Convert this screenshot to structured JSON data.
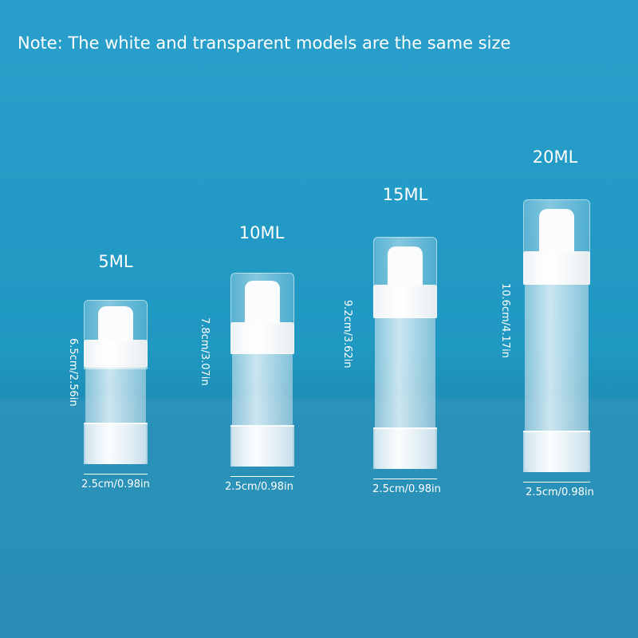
{
  "note": "Note: The white and transparent models are the same size",
  "products": [
    {
      "capacity": "5ML",
      "height": "6.5cm/2.56in",
      "width": "2.5cm/0.98in"
    },
    {
      "capacity": "10ML",
      "height": "7.8cm/3.07in",
      "width": "2.5cm/0.98in"
    },
    {
      "capacity": "15ML",
      "height": "9.2cm/3.62in",
      "width": "2.5cm/0.98in"
    },
    {
      "capacity": "20ML",
      "height": "10.6cm/4.17in",
      "width": "2.5cm/0.98in"
    }
  ],
  "colors": {
    "background": "#1f98c2",
    "text": "#ffffff"
  }
}
